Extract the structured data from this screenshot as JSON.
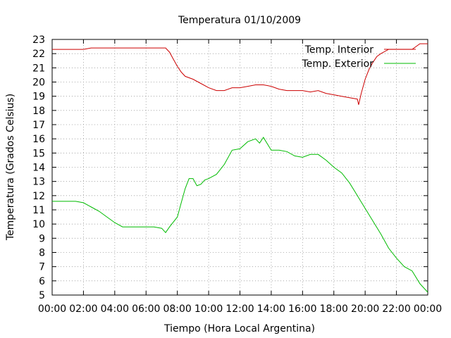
{
  "chart_data": {
    "type": "line",
    "title": "Temperatura 01/10/2009",
    "xlabel": "Tiempo (Hora Local Argentina)",
    "ylabel": "Temperatura (Grados Celsius)",
    "xlim": [
      0,
      24
    ],
    "ylim": [
      5,
      23
    ],
    "x_ticks": [
      "00:00",
      "02:00",
      "04:00",
      "06:00",
      "08:00",
      "10:00",
      "12:00",
      "14:00",
      "16:00",
      "18:00",
      "20:00",
      "22:00",
      "00:00"
    ],
    "y_ticks": [
      "5",
      "6",
      "7",
      "8",
      "9",
      "10",
      "11",
      "12",
      "13",
      "14",
      "15",
      "16",
      "17",
      "18",
      "19",
      "20",
      "21",
      "22",
      "23"
    ],
    "grid": true,
    "legend_position": "top-right",
    "series": [
      {
        "name": "Temp. Interior",
        "color": "#cc0000",
        "x": [
          "00:00",
          "00:20",
          "00:40",
          "02:00",
          "02:30",
          "04:00",
          "06:00",
          "07:00",
          "07:15",
          "07:30",
          "07:45",
          "08:00",
          "08:15",
          "08:30",
          "09:00",
          "09:30",
          "10:00",
          "10:30",
          "11:00",
          "11:30",
          "12:00",
          "12:30",
          "13:00",
          "13:30",
          "14:00",
          "14:30",
          "15:00",
          "15:30",
          "16:00",
          "16:30",
          "17:00",
          "17:30",
          "18:00",
          "18:30",
          "19:00",
          "19:30",
          "19:35",
          "19:45",
          "20:00",
          "20:15",
          "20:30",
          "20:45",
          "21:00",
          "21:30",
          "22:00",
          "22:30",
          "23:00",
          "23:30",
          "24:00"
        ],
        "y": [
          22.3,
          22.3,
          22.3,
          22.3,
          22.4,
          22.4,
          22.4,
          22.4,
          22.4,
          22.1,
          21.6,
          21.1,
          20.7,
          20.4,
          20.2,
          19.9,
          19.6,
          19.4,
          19.4,
          19.6,
          19.6,
          19.7,
          19.8,
          19.8,
          19.7,
          19.5,
          19.4,
          19.4,
          19.4,
          19.3,
          19.4,
          19.2,
          19.1,
          19.0,
          18.9,
          18.8,
          18.4,
          19.2,
          20.2,
          20.9,
          21.4,
          21.8,
          22.0,
          22.3,
          22.3,
          22.3,
          22.3,
          22.7,
          22.7
        ]
      },
      {
        "name": "Temp. Exterior",
        "color": "#00bb00",
        "x": [
          "00:00",
          "00:30",
          "01:00",
          "01:30",
          "02:00",
          "02:30",
          "03:00",
          "03:30",
          "04:00",
          "04:30",
          "05:00",
          "05:30",
          "06:00",
          "06:30",
          "07:00",
          "07:15",
          "07:30",
          "08:00",
          "08:15",
          "08:30",
          "08:45",
          "09:00",
          "09:15",
          "09:30",
          "09:45",
          "10:00",
          "10:30",
          "11:00",
          "11:30",
          "12:00",
          "12:30",
          "13:00",
          "13:15",
          "13:30",
          "14:00",
          "14:30",
          "15:00",
          "15:30",
          "16:00",
          "16:30",
          "17:00",
          "17:30",
          "18:00",
          "18:30",
          "19:00",
          "19:30",
          "20:00",
          "20:30",
          "21:00",
          "21:30",
          "22:00",
          "22:30",
          "23:00",
          "23:30",
          "24:00"
        ],
        "y": [
          11.6,
          11.6,
          11.6,
          11.6,
          11.5,
          11.2,
          10.9,
          10.5,
          10.1,
          9.8,
          9.8,
          9.8,
          9.8,
          9.8,
          9.7,
          9.4,
          9.8,
          10.5,
          11.5,
          12.5,
          13.2,
          13.2,
          12.7,
          12.8,
          13.1,
          13.2,
          13.5,
          14.2,
          15.2,
          15.3,
          15.8,
          16.0,
          15.7,
          16.1,
          15.2,
          15.2,
          15.1,
          14.8,
          14.7,
          14.9,
          14.9,
          14.5,
          14.0,
          13.6,
          12.9,
          12.0,
          11.1,
          10.2,
          9.3,
          8.3,
          7.6,
          7.0,
          6.7,
          5.8,
          5.2
        ]
      }
    ]
  }
}
